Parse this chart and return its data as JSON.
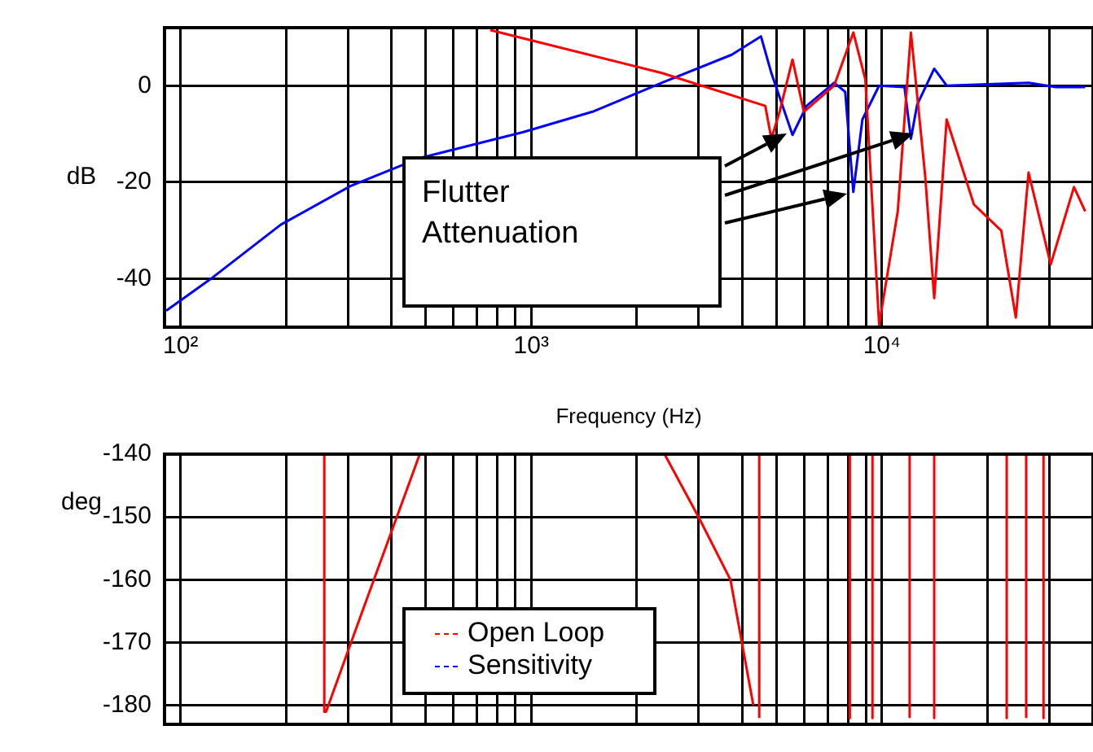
{
  "chart_data": [
    {
      "type": "line",
      "xlabel": "Frequency (Hz)",
      "ylabel": "dB",
      "log": "x",
      "grid": true,
      "legend": "bottom",
      "marker": "none",
      "line_style": "solid",
      "xlim": [
        90,
        40000
      ],
      "ylim": [
        -50,
        12
      ],
      "xticks": [
        {
          "value": 100,
          "label": "10²"
        },
        {
          "value": 200,
          "label": null
        },
        {
          "value": 300,
          "label": null
        },
        {
          "value": 400,
          "label": null
        },
        {
          "value": 500,
          "label": null
        },
        {
          "value": 600,
          "label": null
        },
        {
          "value": 700,
          "label": null
        },
        {
          "value": 800,
          "label": null
        },
        {
          "value": 900,
          "label": null
        },
        {
          "value": 1000,
          "label": "10³"
        },
        {
          "value": 2000,
          "label": null
        },
        {
          "value": 3000,
          "label": null
        },
        {
          "value": 4000,
          "label": null
        },
        {
          "value": 5000,
          "label": null
        },
        {
          "value": 6000,
          "label": null
        },
        {
          "value": 7000,
          "label": null
        },
        {
          "value": 8000,
          "label": null
        },
        {
          "value": 9000,
          "label": null
        },
        {
          "value": 10000,
          "label": "10⁴"
        },
        {
          "value": 20000,
          "label": null
        },
        {
          "value": 30000,
          "label": null
        }
      ],
      "yticks": [
        0,
        -20,
        -40
      ],
      "annotations": [
        "Flutter Attenuation"
      ],
      "series": [
        {
          "name": "Open Loop",
          "color": "#ff0000",
          "x": [
            765,
            2360,
            4650,
            4840,
            5110,
            5560,
            5990,
            7310,
            8290,
            8970,
            9820,
            11100,
            12100,
            13300,
            14100,
            15300,
            18300,
            21900,
            24100,
            26200,
            30300,
            35300,
            38000
          ],
          "values": [
            11.5,
            2.6,
            -4.2,
            -11,
            -5.4,
            5.4,
            -5.4,
            0,
            11,
            1.3,
            -49.5,
            -26,
            11,
            -19,
            -44,
            -7,
            -24.6,
            -30,
            -48,
            -18,
            -37,
            -21,
            -26
          ]
        },
        {
          "name": "Sensitivity",
          "color": "#0000ff",
          "x": [
            91,
            122,
            193,
            305,
            481,
            950,
            1495,
            2360,
            3730,
            4520,
            4840,
            5560,
            6100,
            7310,
            7860,
            8290,
            8800,
            9820,
            11600,
            12100,
            12600,
            14100,
            15300,
            26200,
            31300,
            38000
          ],
          "values": [
            -46.6,
            -40,
            -28.8,
            -20.8,
            -15,
            -9.6,
            -5.4,
            0.6,
            6.4,
            10.2,
            2.6,
            -10.2,
            -4.2,
            0.6,
            -1.3,
            -22,
            -7,
            0,
            -0.3,
            -11,
            -4,
            3.5,
            0,
            0.6,
            -0.3,
            -0.3
          ]
        }
      ]
    },
    {
      "type": "line",
      "ylabel": "deg",
      "log": "x",
      "grid": true,
      "tick_labels": "y",
      "marker": "none",
      "line_style": "solid",
      "xlim": [
        90,
        40000
      ],
      "ylim": [
        -183,
        -140
      ],
      "xticks": [
        {
          "value": 100,
          "label": null
        },
        {
          "value": 200,
          "label": null
        },
        {
          "value": 300,
          "label": null
        },
        {
          "value": 400,
          "label": null
        },
        {
          "value": 500,
          "label": null
        },
        {
          "value": 600,
          "label": null
        },
        {
          "value": 700,
          "label": null
        },
        {
          "value": 800,
          "label": null
        },
        {
          "value": 900,
          "label": null
        },
        {
          "value": 1000,
          "label": null
        },
        {
          "value": 2000,
          "label": null
        },
        {
          "value": 3000,
          "label": null
        },
        {
          "value": 4000,
          "label": null
        },
        {
          "value": 5000,
          "label": null
        },
        {
          "value": 6000,
          "label": null
        },
        {
          "value": 7000,
          "label": null
        },
        {
          "value": 8000,
          "label": null
        },
        {
          "value": 9000,
          "label": null
        },
        {
          "value": 10000,
          "label": null
        },
        {
          "value": 20000,
          "label": null
        },
        {
          "value": 30000,
          "label": null
        }
      ],
      "yticks": [
        -140,
        -150,
        -160,
        -170,
        -180
      ],
      "series": [
        {
          "color": "#ff0000",
          "x": [
            257,
            257,
            260,
            330,
            481,
            1000,
            2400,
            3000,
            3700,
            4300,
            4400,
            4470,
            4470,
            5000,
            8100,
            8100,
            8500,
            9400,
            9400,
            10000,
            12000,
            12000,
            13000,
            14100,
            14100,
            18000,
            22700,
            22700,
            24000,
            25800,
            25800,
            27000,
            28900,
            28900
          ],
          "values": [
            -140,
            -181,
            -181,
            -165,
            -140,
            null,
            -140,
            -150,
            -160,
            -180,
            null,
            -182,
            -140,
            null,
            -140,
            -182,
            null,
            -140,
            -182,
            null,
            -182,
            -140,
            null,
            -140,
            -182,
            null,
            -140,
            -182,
            null,
            -182,
            -140,
            null,
            -140,
            -182
          ]
        }
      ]
    }
  ]
}
